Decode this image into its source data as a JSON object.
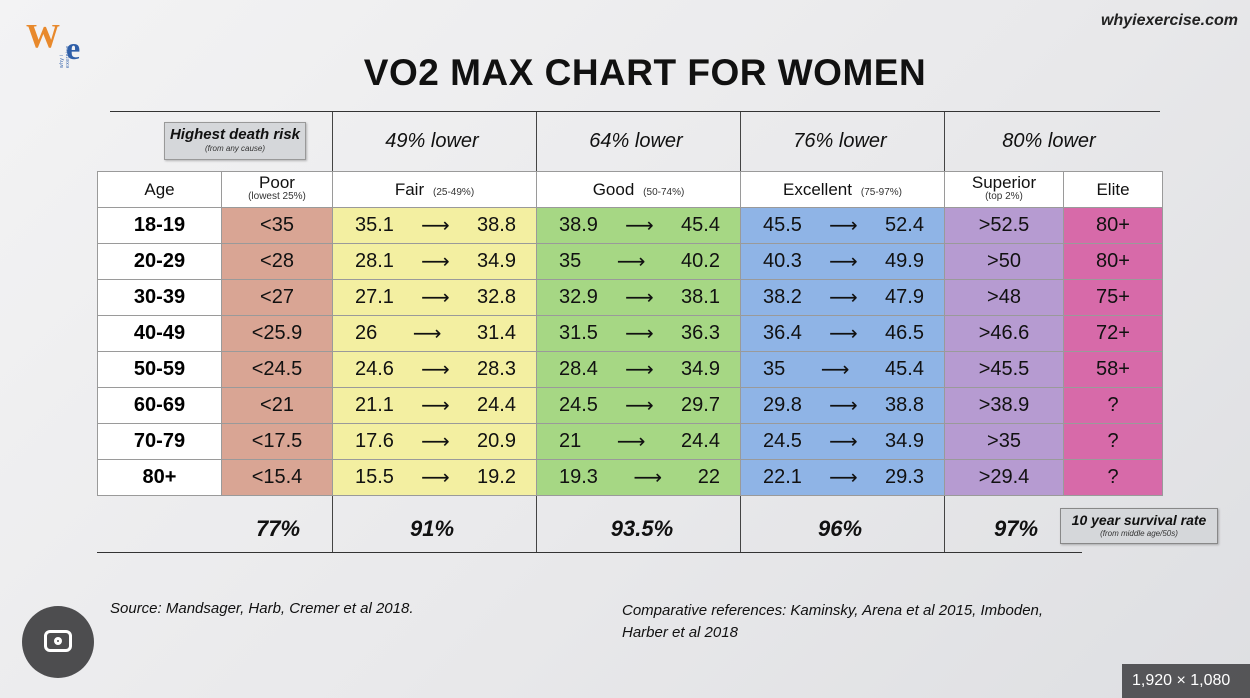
{
  "site": "whyiexercise.com",
  "logo": {
    "letter_w": "W",
    "letter_e": "e",
    "tagline": "why i exercise"
  },
  "title": "VO2 MAX CHART FOR WOMEN",
  "risk_box": {
    "main": "Highest death risk",
    "sub": "(from any cause)"
  },
  "risk_labels": [
    "49% lower",
    "64% lower",
    "76% lower",
    "80% lower"
  ],
  "headers": {
    "age": "Age",
    "poor": "Poor",
    "poor_sub": "(lowest 25%)",
    "fair": "Fair",
    "fair_sub": "(25-49%)",
    "good": "Good",
    "good_sub": "(50-74%)",
    "excellent": "Excellent",
    "excellent_sub": "(75-97%)",
    "superior": "Superior",
    "superior_sub": "(top 2%)",
    "elite": "Elite"
  },
  "arrow": "⟶",
  "chart_data": {
    "type": "table",
    "title": "VO2 MAX CHART FOR WOMEN",
    "columns": [
      "Age",
      "Poor",
      "Fair",
      "Good",
      "Excellent",
      "Superior",
      "Elite"
    ],
    "rows": [
      {
        "age": "18-19",
        "poor": "<35",
        "fair": [
          "35.1",
          "38.8"
        ],
        "good": [
          "38.9",
          "45.4"
        ],
        "excellent": [
          "45.5",
          "52.4"
        ],
        "superior": ">52.5",
        "elite": "80+"
      },
      {
        "age": "20-29",
        "poor": "<28",
        "fair": [
          "28.1",
          "34.9"
        ],
        "good": [
          "35",
          "40.2"
        ],
        "excellent": [
          "40.3",
          "49.9"
        ],
        "superior": ">50",
        "elite": "80+"
      },
      {
        "age": "30-39",
        "poor": "<27",
        "fair": [
          "27.1",
          "32.8"
        ],
        "good": [
          "32.9",
          "38.1"
        ],
        "excellent": [
          "38.2",
          "47.9"
        ],
        "superior": ">48",
        "elite": "75+"
      },
      {
        "age": "40-49",
        "poor": "<25.9",
        "fair": [
          "26",
          "31.4"
        ],
        "good": [
          "31.5",
          "36.3"
        ],
        "excellent": [
          "36.4",
          "46.5"
        ],
        "superior": ">46.6",
        "elite": "72+"
      },
      {
        "age": "50-59",
        "poor": "<24.5",
        "fair": [
          "24.6",
          "28.3"
        ],
        "good": [
          "28.4",
          "34.9"
        ],
        "excellent": [
          "35",
          "45.4"
        ],
        "superior": ">45.5",
        "elite": "58+"
      },
      {
        "age": "60-69",
        "poor": "<21",
        "fair": [
          "21.1",
          "24.4"
        ],
        "good": [
          "24.5",
          "29.7"
        ],
        "excellent": [
          "29.8",
          "38.8"
        ],
        "superior": ">38.9",
        "elite": "?"
      },
      {
        "age": "70-79",
        "poor": "<17.5",
        "fair": [
          "17.6",
          "20.9"
        ],
        "good": [
          "21",
          "24.4"
        ],
        "excellent": [
          "24.5",
          "34.9"
        ],
        "superior": ">35",
        "elite": "?"
      },
      {
        "age": "80+",
        "poor": "<15.4",
        "fair": [
          "15.5",
          "19.2"
        ],
        "good": [
          "19.3",
          "22"
        ],
        "excellent": [
          "22.1",
          "29.3"
        ],
        "superior": ">29.4",
        "elite": "?"
      }
    ],
    "survival_rates": [
      "77%",
      "91%",
      "93.5%",
      "96%",
      "97%"
    ],
    "colors": {
      "poor": "#d9a594",
      "fair": "#f3efa1",
      "good": "#a6d784",
      "excellent": "#8fb4e6",
      "superior": "#b69bd1",
      "elite": "#d76aa9"
    }
  },
  "survival_box": {
    "main": "10 year survival rate",
    "sub": "(from middle age/50s)"
  },
  "source": "Source:  Mandsager, Harb, Cremer et al 2018.",
  "comparative": "Comparative references:  Kaminsky, Arena et al 2015, Imboden, Harber et al 2018",
  "image_size": "1,920 × 1,080"
}
